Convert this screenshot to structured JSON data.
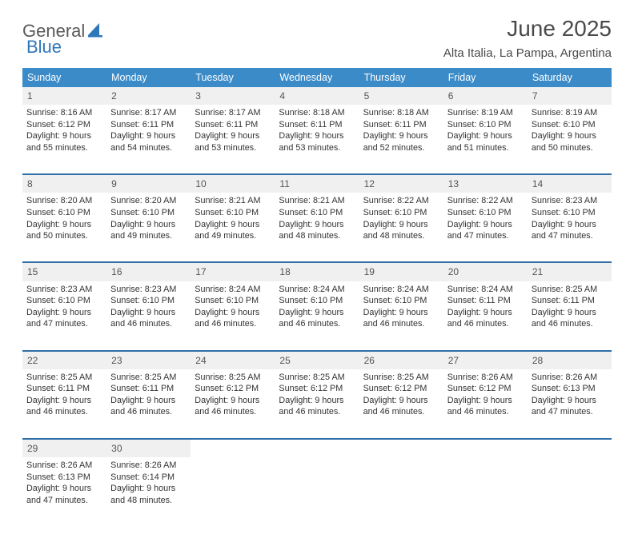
{
  "brand": {
    "part1": "General",
    "part2": "Blue"
  },
  "title": "June 2025",
  "location": "Alta Italia, La Pampa, Argentina",
  "colors": {
    "header_bg": "#3b8bc9",
    "divider": "#2f6fa8",
    "daynum_bg": "#f0f0f0",
    "brand_blue": "#2f77bb",
    "text": "#333333",
    "background": "#ffffff"
  },
  "dayHeaders": [
    "Sunday",
    "Monday",
    "Tuesday",
    "Wednesday",
    "Thursday",
    "Friday",
    "Saturday"
  ],
  "weeks": [
    [
      {
        "n": "1",
        "sunrise": "8:16 AM",
        "sunset": "6:12 PM",
        "day_h": 9,
        "day_m": 55
      },
      {
        "n": "2",
        "sunrise": "8:17 AM",
        "sunset": "6:11 PM",
        "day_h": 9,
        "day_m": 54
      },
      {
        "n": "3",
        "sunrise": "8:17 AM",
        "sunset": "6:11 PM",
        "day_h": 9,
        "day_m": 53
      },
      {
        "n": "4",
        "sunrise": "8:18 AM",
        "sunset": "6:11 PM",
        "day_h": 9,
        "day_m": 53
      },
      {
        "n": "5",
        "sunrise": "8:18 AM",
        "sunset": "6:11 PM",
        "day_h": 9,
        "day_m": 52
      },
      {
        "n": "6",
        "sunrise": "8:19 AM",
        "sunset": "6:10 PM",
        "day_h": 9,
        "day_m": 51
      },
      {
        "n": "7",
        "sunrise": "8:19 AM",
        "sunset": "6:10 PM",
        "day_h": 9,
        "day_m": 50
      }
    ],
    [
      {
        "n": "8",
        "sunrise": "8:20 AM",
        "sunset": "6:10 PM",
        "day_h": 9,
        "day_m": 50
      },
      {
        "n": "9",
        "sunrise": "8:20 AM",
        "sunset": "6:10 PM",
        "day_h": 9,
        "day_m": 49
      },
      {
        "n": "10",
        "sunrise": "8:21 AM",
        "sunset": "6:10 PM",
        "day_h": 9,
        "day_m": 49
      },
      {
        "n": "11",
        "sunrise": "8:21 AM",
        "sunset": "6:10 PM",
        "day_h": 9,
        "day_m": 48
      },
      {
        "n": "12",
        "sunrise": "8:22 AM",
        "sunset": "6:10 PM",
        "day_h": 9,
        "day_m": 48
      },
      {
        "n": "13",
        "sunrise": "8:22 AM",
        "sunset": "6:10 PM",
        "day_h": 9,
        "day_m": 47
      },
      {
        "n": "14",
        "sunrise": "8:23 AM",
        "sunset": "6:10 PM",
        "day_h": 9,
        "day_m": 47
      }
    ],
    [
      {
        "n": "15",
        "sunrise": "8:23 AM",
        "sunset": "6:10 PM",
        "day_h": 9,
        "day_m": 47
      },
      {
        "n": "16",
        "sunrise": "8:23 AM",
        "sunset": "6:10 PM",
        "day_h": 9,
        "day_m": 46
      },
      {
        "n": "17",
        "sunrise": "8:24 AM",
        "sunset": "6:10 PM",
        "day_h": 9,
        "day_m": 46
      },
      {
        "n": "18",
        "sunrise": "8:24 AM",
        "sunset": "6:10 PM",
        "day_h": 9,
        "day_m": 46
      },
      {
        "n": "19",
        "sunrise": "8:24 AM",
        "sunset": "6:10 PM",
        "day_h": 9,
        "day_m": 46
      },
      {
        "n": "20",
        "sunrise": "8:24 AM",
        "sunset": "6:11 PM",
        "day_h": 9,
        "day_m": 46
      },
      {
        "n": "21",
        "sunrise": "8:25 AM",
        "sunset": "6:11 PM",
        "day_h": 9,
        "day_m": 46
      }
    ],
    [
      {
        "n": "22",
        "sunrise": "8:25 AM",
        "sunset": "6:11 PM",
        "day_h": 9,
        "day_m": 46
      },
      {
        "n": "23",
        "sunrise": "8:25 AM",
        "sunset": "6:11 PM",
        "day_h": 9,
        "day_m": 46
      },
      {
        "n": "24",
        "sunrise": "8:25 AM",
        "sunset": "6:12 PM",
        "day_h": 9,
        "day_m": 46
      },
      {
        "n": "25",
        "sunrise": "8:25 AM",
        "sunset": "6:12 PM",
        "day_h": 9,
        "day_m": 46
      },
      {
        "n": "26",
        "sunrise": "8:25 AM",
        "sunset": "6:12 PM",
        "day_h": 9,
        "day_m": 46
      },
      {
        "n": "27",
        "sunrise": "8:26 AM",
        "sunset": "6:12 PM",
        "day_h": 9,
        "day_m": 46
      },
      {
        "n": "28",
        "sunrise": "8:26 AM",
        "sunset": "6:13 PM",
        "day_h": 9,
        "day_m": 47
      }
    ],
    [
      {
        "n": "29",
        "sunrise": "8:26 AM",
        "sunset": "6:13 PM",
        "day_h": 9,
        "day_m": 47
      },
      {
        "n": "30",
        "sunrise": "8:26 AM",
        "sunset": "6:14 PM",
        "day_h": 9,
        "day_m": 48
      },
      null,
      null,
      null,
      null,
      null
    ]
  ],
  "labels": {
    "sunrise": "Sunrise:",
    "sunset": "Sunset:",
    "daylight": "Daylight:",
    "hours": "hours",
    "and": "and",
    "minutes": "minutes."
  }
}
